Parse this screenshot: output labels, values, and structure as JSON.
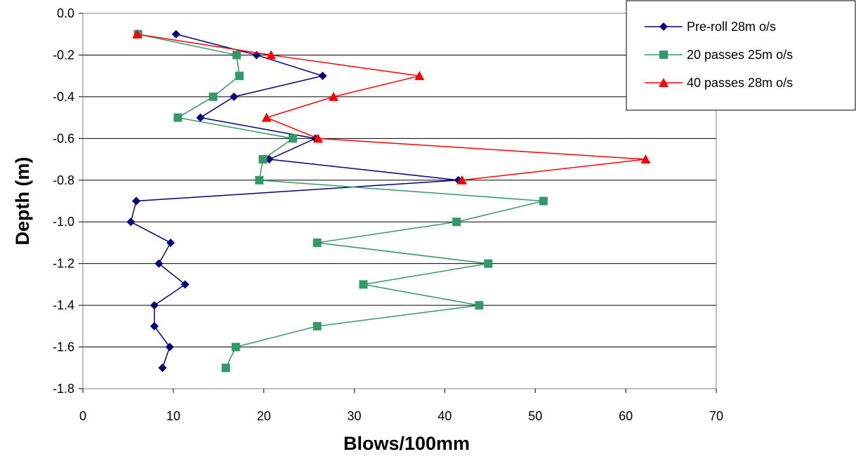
{
  "chart_data": {
    "type": "line",
    "title": "",
    "xlabel": "Blows/100mm",
    "ylabel": "Depth (m)",
    "xlim": [
      0,
      70
    ],
    "ylim": [
      -1.8,
      0.0
    ],
    "x_ticks": [
      0,
      10,
      20,
      30,
      40,
      50,
      60,
      70
    ],
    "x_tick_labels": [
      "0",
      "10",
      "20",
      "30",
      "40",
      "50",
      "60",
      "70"
    ],
    "y_ticks": [
      0.0,
      -0.2,
      -0.4,
      -0.6,
      -0.8,
      -1.0,
      -1.2,
      -1.4,
      -1.6,
      -1.8
    ],
    "y_tick_labels": [
      "0.0",
      "-0.2",
      "-0.4",
      "-0.6",
      "-0.8",
      "-1.0",
      "-1.2",
      "-1.4",
      "-1.6",
      "-1.8"
    ],
    "grid": "horizontal",
    "legend_position": "top-right",
    "series": [
      {
        "name": "Pre-roll 28m o/s",
        "color": "#000080",
        "marker": "diamond",
        "points": [
          {
            "x": 10.3,
            "y": -0.1
          },
          {
            "x": 19.2,
            "y": -0.2
          },
          {
            "x": 26.5,
            "y": -0.3
          },
          {
            "x": 16.7,
            "y": -0.4
          },
          {
            "x": 13.0,
            "y": -0.5
          },
          {
            "x": 25.7,
            "y": -0.6
          },
          {
            "x": 20.6,
            "y": -0.7
          },
          {
            "x": 41.5,
            "y": -0.8
          },
          {
            "x": 5.9,
            "y": -0.9
          },
          {
            "x": 5.3,
            "y": -1.0
          },
          {
            "x": 9.7,
            "y": -1.1
          },
          {
            "x": 8.4,
            "y": -1.2
          },
          {
            "x": 11.3,
            "y": -1.3
          },
          {
            "x": 7.9,
            "y": -1.4
          },
          {
            "x": 7.9,
            "y": -1.5
          },
          {
            "x": 9.6,
            "y": -1.6
          },
          {
            "x": 8.8,
            "y": -1.7
          }
        ]
      },
      {
        "name": "20 passes 25m o/s",
        "color": "#339966",
        "marker": "square",
        "points": [
          {
            "x": 6.1,
            "y": -0.1
          },
          {
            "x": 17.0,
            "y": -0.2
          },
          {
            "x": 17.3,
            "y": -0.3
          },
          {
            "x": 14.4,
            "y": -0.4
          },
          {
            "x": 10.5,
            "y": -0.5
          },
          {
            "x": 23.2,
            "y": -0.6
          },
          {
            "x": 19.9,
            "y": -0.7
          },
          {
            "x": 19.5,
            "y": -0.8
          },
          {
            "x": 50.9,
            "y": -0.9
          },
          {
            "x": 41.3,
            "y": -1.0
          },
          {
            "x": 25.9,
            "y": -1.1
          },
          {
            "x": 44.8,
            "y": -1.2
          },
          {
            "x": 31.0,
            "y": -1.3
          },
          {
            "x": 43.8,
            "y": -1.4
          },
          {
            "x": 25.9,
            "y": -1.5
          },
          {
            "x": 16.9,
            "y": -1.6
          },
          {
            "x": 15.8,
            "y": -1.7
          }
        ]
      },
      {
        "name": "40 passes 28m o/s",
        "color": "#ff0000",
        "marker": "triangle",
        "points": [
          {
            "x": 6.0,
            "y": -0.1
          },
          {
            "x": 20.8,
            "y": -0.2
          },
          {
            "x": 37.2,
            "y": -0.3
          },
          {
            "x": 27.7,
            "y": -0.4
          },
          {
            "x": 20.3,
            "y": -0.5
          },
          {
            "x": 26.0,
            "y": -0.6
          },
          {
            "x": 62.2,
            "y": -0.7
          },
          {
            "x": 41.9,
            "y": -0.8
          }
        ]
      }
    ]
  }
}
